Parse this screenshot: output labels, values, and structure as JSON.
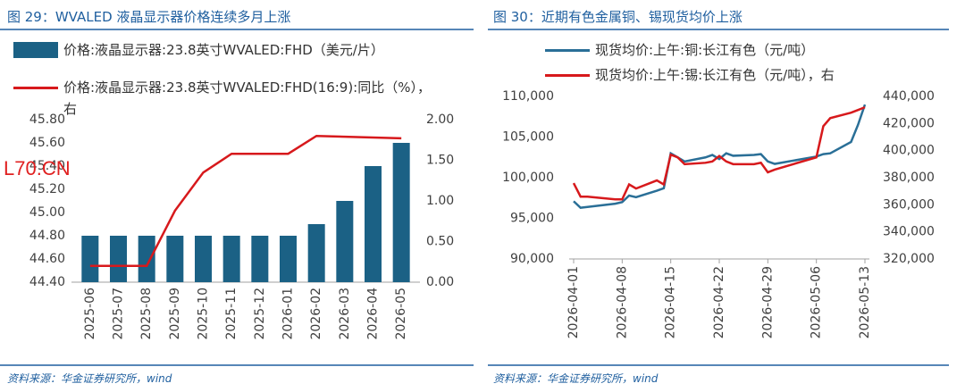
{
  "chart_data": [
    {
      "type": "combo",
      "title": "图 29：WVALED 液晶显示器价格连续多月上涨",
      "source": "资料来源：华金证券研究所，wind",
      "watermark": "L70.CN",
      "categories": [
        "2025-06",
        "2025-07",
        "2025-08",
        "2025-09",
        "2025-10",
        "2025-11",
        "2025-12",
        "2026-01",
        "2026-02",
        "2026-03",
        "2026-04",
        "2026-05"
      ],
      "series": [
        {
          "type": "bar",
          "name": "价格:液晶显示器:23.8英寸WVALED:FHD（美元/片）",
          "color": "#1b6185",
          "values": [
            44.8,
            44.8,
            44.8,
            44.8,
            44.8,
            44.8,
            44.8,
            44.8,
            44.9,
            45.1,
            45.4,
            45.6
          ]
        },
        {
          "type": "line",
          "axis": "y2",
          "name": "价格:液晶显示器:23.8英寸WVALED:FHD(16:9):同比（%），右",
          "color": "#d7191c",
          "values": [
            0.2,
            0.2,
            0.2,
            0.88,
            1.35,
            1.58,
            1.58,
            1.58,
            1.8,
            1.79,
            1.78,
            1.77
          ]
        }
      ],
      "ylim": [
        44.4,
        45.8
      ],
      "yticks": [
        {
          "value": 44.4,
          "label": "44.40"
        },
        {
          "value": 44.6,
          "label": "44.60"
        },
        {
          "value": 44.8,
          "label": "44.80"
        },
        {
          "value": 45.0,
          "label": "45.00"
        },
        {
          "value": 45.2,
          "label": "45.20"
        },
        {
          "value": 45.4,
          "label": "45.40"
        },
        {
          "value": 45.6,
          "label": "45.60"
        },
        {
          "value": 45.8,
          "label": "45.80"
        }
      ],
      "y2lim": [
        0,
        2
      ],
      "y2ticks": [
        {
          "value": 0,
          "label": "0.00"
        },
        {
          "value": 0.5,
          "label": "0.50"
        },
        {
          "value": 1,
          "label": "1.00"
        },
        {
          "value": 1.5,
          "label": "1.50"
        },
        {
          "value": 2,
          "label": "2.00"
        }
      ]
    },
    {
      "type": "line",
      "title": "图 30：近期有色金属铜、锡现货均价上涨",
      "source": "资料来源：华金证券研究所，wind",
      "x": [
        "2026-04-01",
        "2026-04-02",
        "2026-04-03",
        "2026-04-07",
        "2026-04-08",
        "2026-04-09",
        "2026-04-10",
        "2026-04-13",
        "2026-04-14",
        "2026-04-15",
        "2026-04-16",
        "2026-04-17",
        "2026-04-20",
        "2026-04-21",
        "2026-04-22",
        "2026-04-23",
        "2026-04-24",
        "2026-04-27",
        "2026-04-28",
        "2026-04-29",
        "2026-04-30",
        "2026-05-06",
        "2026-05-07",
        "2026-05-08",
        "2026-05-11",
        "2026-05-12",
        "2026-05-13"
      ],
      "series": [
        {
          "name": "现货均价:上午:铜:长江有色（元/吨）",
          "color": "#2a6f97",
          "values": [
            97100,
            96300,
            96400,
            96800,
            97000,
            97800,
            97600,
            98400,
            98700,
            103000,
            102500,
            102000,
            102500,
            102800,
            102300,
            103000,
            102700,
            102800,
            102900,
            102000,
            101700,
            102600,
            102900,
            103000,
            104400,
            106500,
            109000
          ]
        },
        {
          "name": "现货均价:上午:锡:长江有色（元/吨），右",
          "axis": "y2",
          "color": "#d7191c",
          "values": [
            376000,
            366000,
            366000,
            364000,
            364000,
            375000,
            372000,
            378000,
            375000,
            397000,
            395000,
            390000,
            391000,
            392000,
            396000,
            392000,
            390000,
            390000,
            391000,
            384000,
            386000,
            395000,
            418000,
            424000,
            428000,
            430000,
            432000
          ]
        }
      ],
      "xlim": [
        "2026-04-01",
        "2026-05-13"
      ],
      "xticks": [
        "2026-04-01",
        "2026-04-08",
        "2026-04-15",
        "2026-04-22",
        "2026-04-29",
        "2026-05-06",
        "2026-05-13"
      ],
      "ylim": [
        90000,
        110000
      ],
      "yticks": [
        {
          "value": 90000,
          "label": "90,000"
        },
        {
          "value": 95000,
          "label": "95,000"
        },
        {
          "value": 100000,
          "label": "100,000"
        },
        {
          "value": 105000,
          "label": "105,000"
        },
        {
          "value": 110000,
          "label": "110,000"
        }
      ],
      "y2lim": [
        320000,
        440000
      ],
      "y2ticks": [
        {
          "value": 320000,
          "label": "320,000"
        },
        {
          "value": 340000,
          "label": "340,000"
        },
        {
          "value": 360000,
          "label": "360,000"
        },
        {
          "value": 380000,
          "label": "380,000"
        },
        {
          "value": 400000,
          "label": "400,000"
        },
        {
          "value": 420000,
          "label": "420,000"
        },
        {
          "value": 440000,
          "label": "440,000"
        }
      ]
    }
  ]
}
